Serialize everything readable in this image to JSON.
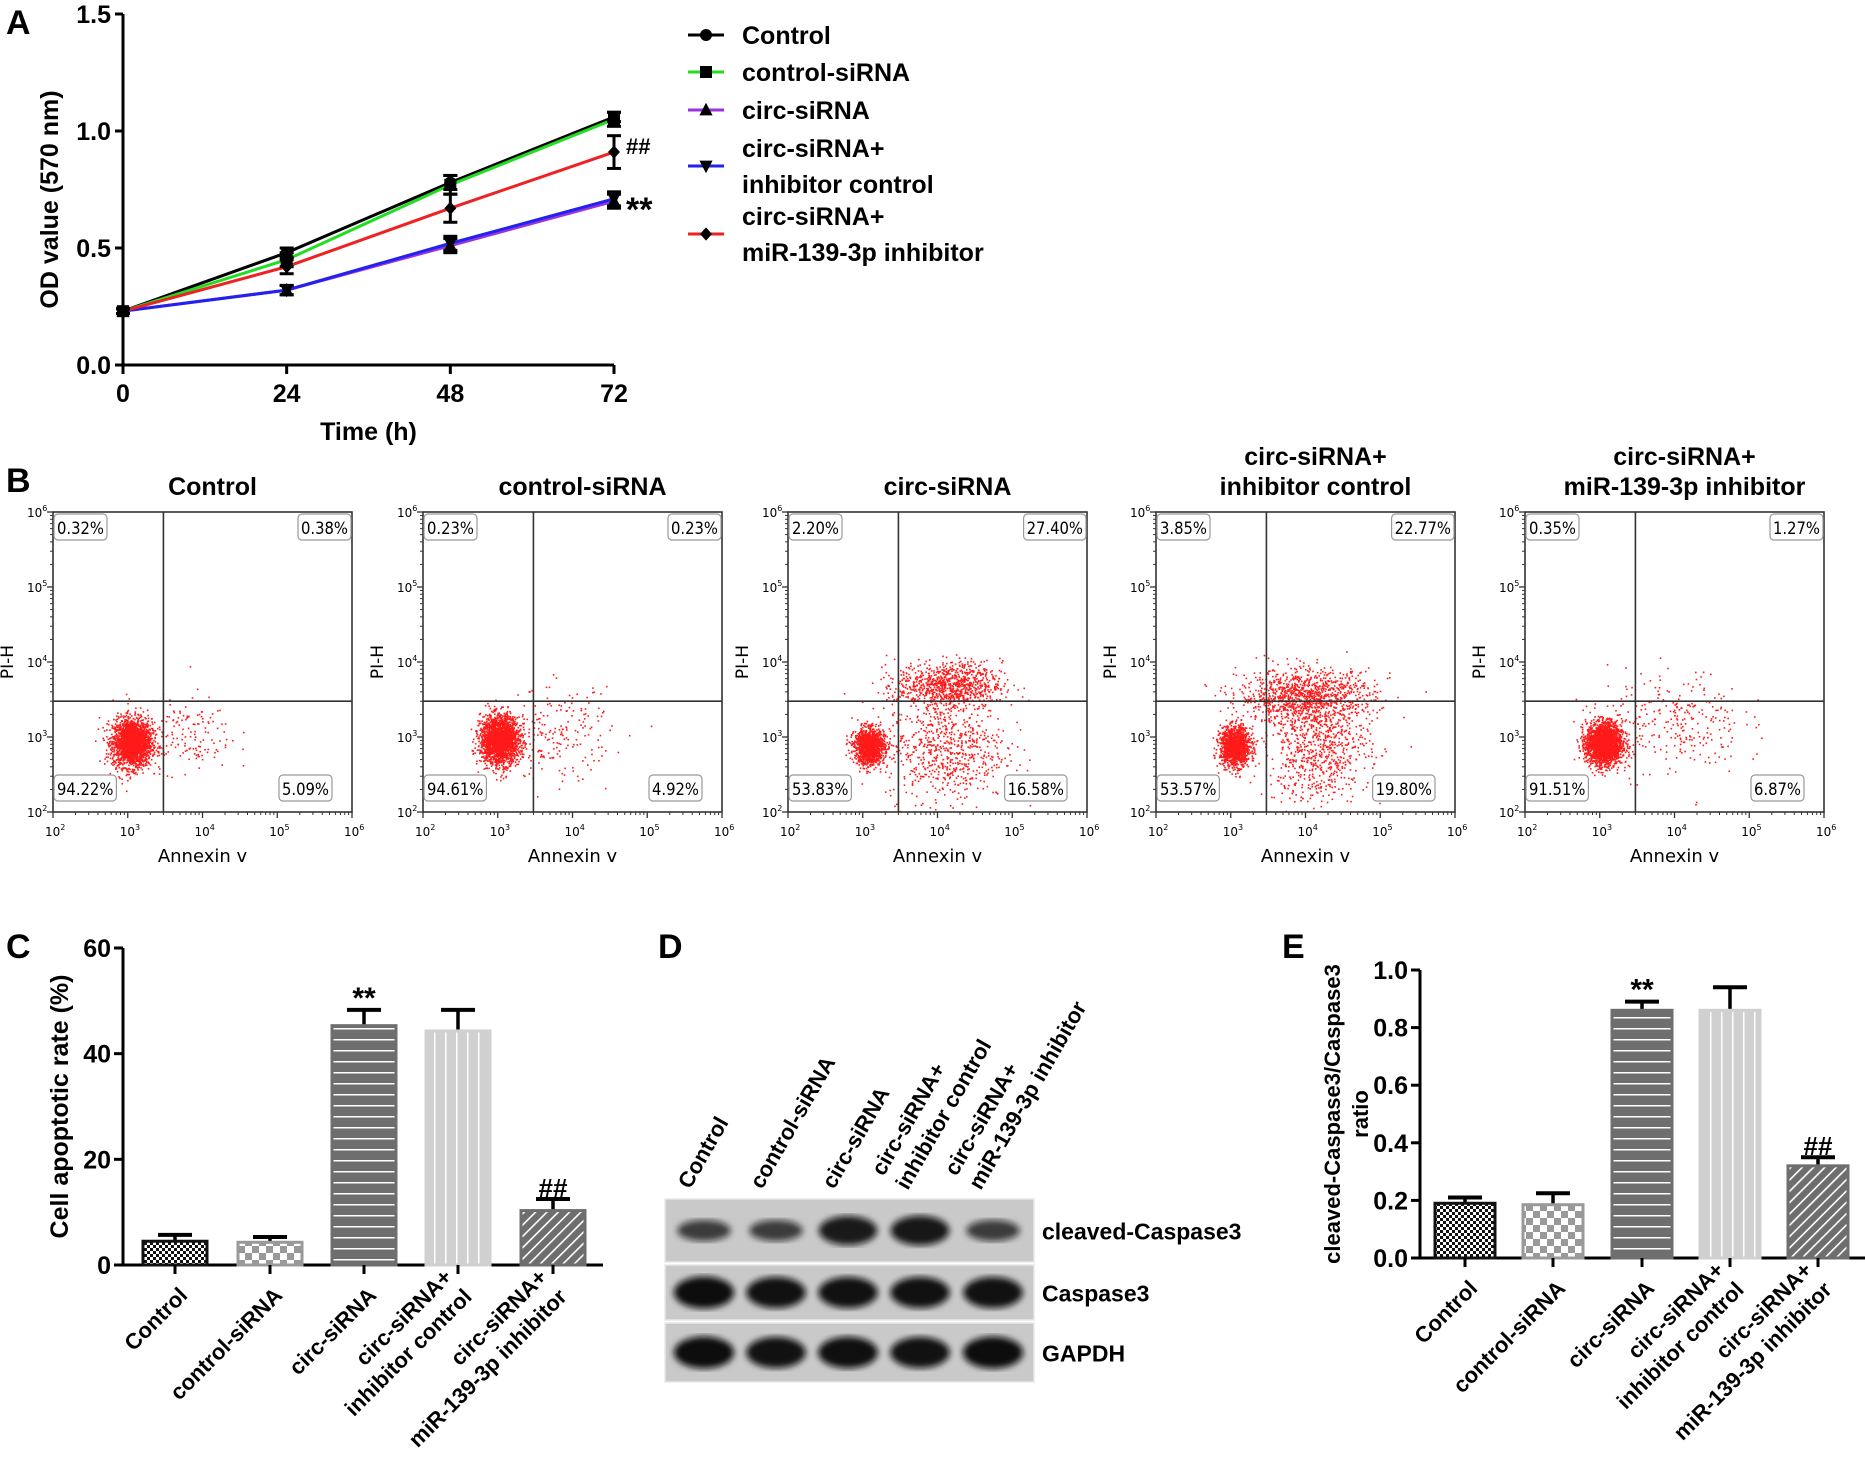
{
  "panel_labels": [
    "A",
    "B",
    "C",
    "D",
    "E"
  ],
  "groups": [
    "Control",
    "control-siRNA",
    "circ-siRNA",
    "circ-siRNA+ inhibitor control",
    "circ-siRNA+ miR-139-3p inhibitor"
  ],
  "chart_data": [
    {
      "panel": "A",
      "type": "line",
      "title": "",
      "xlabel": "Time (h)",
      "ylabel": "OD value (570 nm)",
      "x": [
        0,
        24,
        48,
        72
      ],
      "xticks": [
        "0",
        "24",
        "48",
        "72"
      ],
      "yticks": [
        "0.0",
        "0.5",
        "1.0",
        "1.5"
      ],
      "xlim": [
        0,
        72
      ],
      "ylim": [
        0,
        1.5
      ],
      "legend_position": "right",
      "series": [
        {
          "name": "Control",
          "legend_lines": [
            "Control"
          ],
          "color": "#000000",
          "marker": "circle",
          "values": [
            0.23,
            0.48,
            0.78,
            1.06
          ],
          "errors": [
            0.01,
            0.02,
            0.03,
            0.02
          ]
        },
        {
          "name": "control-siRNA",
          "legend_lines": [
            "control-siRNA"
          ],
          "color": "#22dd22",
          "marker": "square",
          "values": [
            0.23,
            0.45,
            0.77,
            1.05
          ],
          "errors": [
            0.01,
            0.03,
            0.04,
            0.03
          ]
        },
        {
          "name": "circ-siRNA",
          "legend_lines": [
            "circ-siRNA"
          ],
          "color": "#9933dd",
          "marker": "triangle-up",
          "values": [
            0.23,
            0.32,
            0.51,
            0.7
          ],
          "errors": [
            0.01,
            0.02,
            0.03,
            0.03
          ]
        },
        {
          "name": "circ-siRNA+ inhibitor control",
          "legend_lines": [
            "circ-siRNA+",
            "inhibitor control"
          ],
          "color": "#2222ee",
          "marker": "triangle-down",
          "values": [
            0.23,
            0.32,
            0.52,
            0.71
          ],
          "errors": [
            0.01,
            0.02,
            0.03,
            0.03
          ]
        },
        {
          "name": "circ-siRNA+ miR-139-3p inhibitor",
          "legend_lines": [
            "circ-siRNA+",
            "miR-139-3p inhibitor"
          ],
          "color": "#ee2222",
          "marker": "diamond",
          "values": [
            0.23,
            0.42,
            0.67,
            0.91
          ],
          "errors": [
            0.01,
            0.03,
            0.06,
            0.07
          ]
        }
      ],
      "annotations": [
        {
          "text": "##",
          "series": "circ-siRNA+ miR-139-3p inhibitor",
          "x": 72
        },
        {
          "text": "**",
          "series": "circ-siRNA",
          "x": 72
        }
      ]
    },
    {
      "panel": "B",
      "type": "scatter",
      "description": "Flow cytometry Annexin V / PI dot plots",
      "xlabel": "Annexin v",
      "ylabel": "PI-H",
      "axis_scale": "log",
      "xlim": [
        100,
        1000000
      ],
      "ylim": [
        100,
        1000000
      ],
      "tick_exponents": [
        "2",
        "3",
        "4",
        "5",
        "6"
      ],
      "tick_base": "10",
      "gate": {
        "x": 3000,
        "y": 3000
      },
      "plots": [
        {
          "title_lines": [
            "Control"
          ],
          "quadrants": {
            "upper_left": "0.32%",
            "upper_right": "0.38%",
            "lower_left": "94.22%",
            "lower_right": "5.09%"
          }
        },
        {
          "title_lines": [
            "control-siRNA"
          ],
          "quadrants": {
            "upper_left": "0.23%",
            "upper_right": "0.23%",
            "lower_left": "94.61%",
            "lower_right": "4.92%"
          }
        },
        {
          "title_lines": [
            "circ-siRNA"
          ],
          "quadrants": {
            "upper_left": "2.20%",
            "upper_right": "27.40%",
            "lower_left": "53.83%",
            "lower_right": "16.58%"
          }
        },
        {
          "title_lines": [
            "circ-siRNA+",
            "inhibitor control"
          ],
          "quadrants": {
            "upper_left": "3.85%",
            "upper_right": "22.77%",
            "lower_left": "53.57%",
            "lower_right": "19.80%"
          }
        },
        {
          "title_lines": [
            "circ-siRNA+",
            "miR-139-3p inhibitor"
          ],
          "quadrants": {
            "upper_left": "0.35%",
            "upper_right": "1.27%",
            "lower_left": "91.51%",
            "lower_right": "6.87%"
          }
        }
      ]
    },
    {
      "panel": "C",
      "type": "bar",
      "title": "",
      "xlabel": "",
      "ylabel": "Cell apoptotic rate (%)",
      "categories": [
        "Control",
        "control-siRNA",
        "circ-siRNA",
        "circ-siRNA+ inhibitor control",
        "circ-siRNA+ miR-139-3p inhibitor"
      ],
      "category_lines": [
        [
          "Control"
        ],
        [
          "control-siRNA"
        ],
        [
          "circ-siRNA"
        ],
        [
          "circ-siRNA+",
          "inhibitor control"
        ],
        [
          "circ-siRNA+",
          "miR-139-3p inhibitor"
        ]
      ],
      "values": [
        4.5,
        4.3,
        45.3,
        44.3,
        10.3
      ],
      "errors": [
        1.2,
        1.0,
        3.0,
        4.0,
        2.2
      ],
      "significance": [
        "",
        "",
        "**",
        "",
        "##"
      ],
      "yticks": [
        "0",
        "20",
        "40",
        "60"
      ],
      "ylim": [
        0,
        60
      ]
    },
    {
      "panel": "D",
      "type": "table",
      "description": "Western blot",
      "lanes": [
        [
          "Control"
        ],
        [
          "control-siRNA"
        ],
        [
          "circ-siRNA"
        ],
        [
          "circ-siRNA+",
          "inhibitor control"
        ],
        [
          "circ-siRNA+",
          "miR-139-3p inhibitor"
        ]
      ],
      "rows": [
        {
          "label": "cleaved-Caspase3",
          "band_intensity": [
            0.45,
            0.45,
            0.85,
            0.88,
            0.45
          ]
        },
        {
          "label": "Caspase3",
          "band_intensity": [
            1.0,
            0.95,
            0.95,
            0.95,
            0.95
          ]
        },
        {
          "label": "GAPDH",
          "band_intensity": [
            1.0,
            0.95,
            0.97,
            0.95,
            1.0
          ]
        }
      ]
    },
    {
      "panel": "E",
      "type": "bar",
      "title": "",
      "xlabel": "",
      "ylabel_lines": [
        "cleaved-Caspase3/Caspase3",
        "ratio"
      ],
      "categories": [
        "Control",
        "control-siRNA",
        "circ-siRNA",
        "circ-siRNA+ inhibitor control",
        "circ-siRNA+ miR-139-3p inhibitor"
      ],
      "category_lines": [
        [
          "Control"
        ],
        [
          "control-siRNA"
        ],
        [
          "circ-siRNA"
        ],
        [
          "circ-siRNA+",
          "inhibitor control"
        ],
        [
          "circ-siRNA+",
          "miR-139-3p inhibitor"
        ]
      ],
      "values": [
        0.19,
        0.185,
        0.86,
        0.86,
        0.32
      ],
      "errors": [
        0.02,
        0.04,
        0.03,
        0.08,
        0.03
      ],
      "significance": [
        "",
        "",
        "**",
        "",
        "##"
      ],
      "yticks": [
        "0.0",
        "0.2",
        "0.4",
        "0.6",
        "0.8",
        "1.0"
      ],
      "ylim": [
        0,
        1.0
      ]
    }
  ]
}
